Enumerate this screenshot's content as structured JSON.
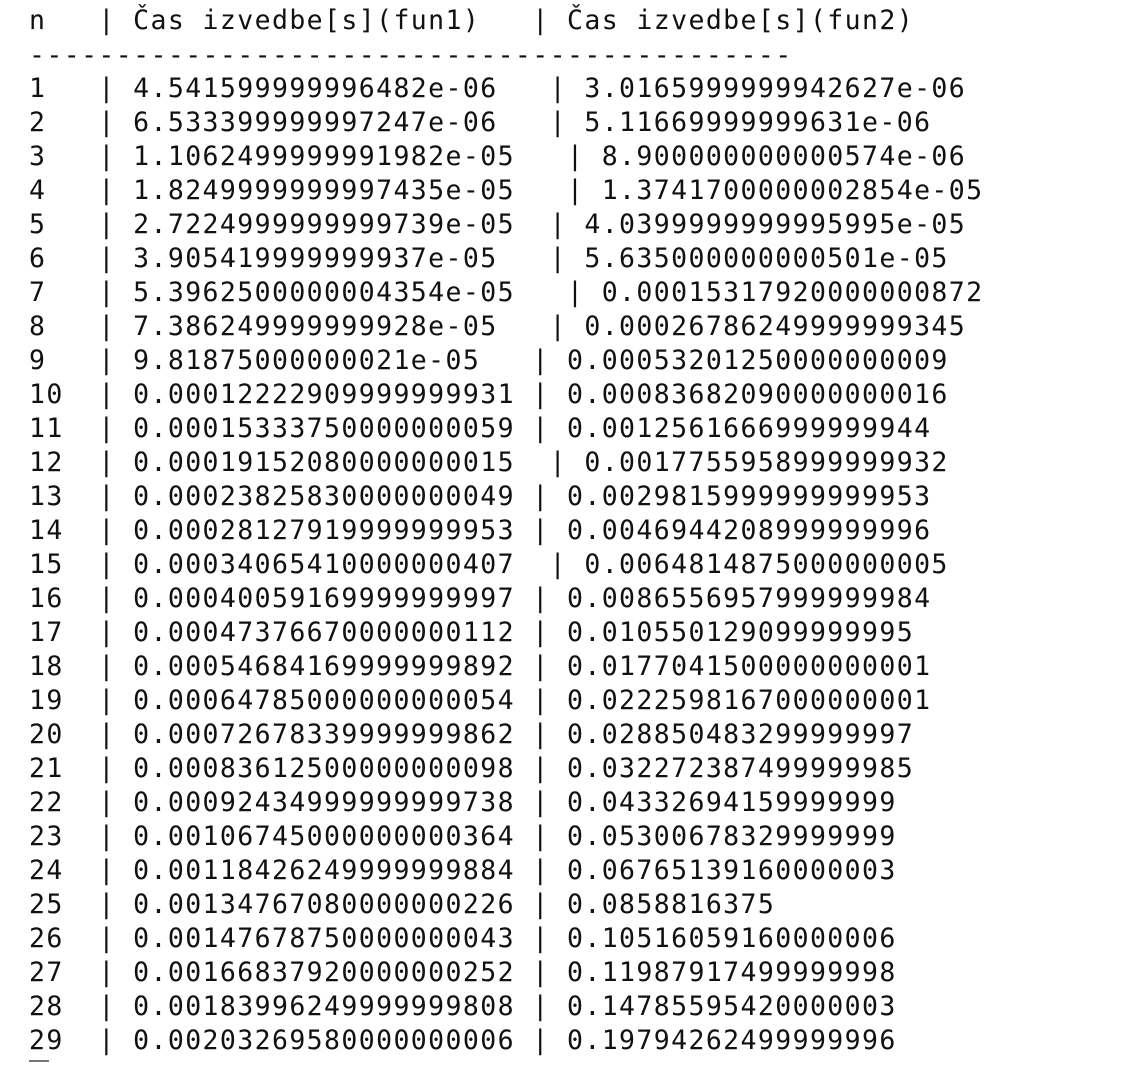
{
  "header": {
    "line": "n   | Čas izvedbe[s](fun1)   | Čas izvedbe[s](fun2)"
  },
  "separator": "--------------------------------------------",
  "rows": [
    "1   | 4.541599999996482e-06   | 3.0165999999942627e-06",
    "2   | 6.533399999997247e-06   | 5.11669999999631e-06",
    "3   | 1.1062499999991982e-05   | 8.900000000000574e-06",
    "4   | 1.8249999999997435e-05   | 1.3741700000002854e-05",
    "5   | 2.7224999999999739e-05  | 4.0399999999995995e-05",
    "6   | 3.905419999999937e-05   | 5.635000000000501e-05",
    "7   | 5.3962500000004354e-05   | 0.00015317920000000872",
    "8   | 7.386249999999928e-05   | 0.00026786249999999345",
    "9   | 9.81875000000021e-05   | 0.00053201250000000009",
    "10  | 0.00012222909999999931 | 0.00083682090000000016",
    "11  | 0.00015333750000000059 | 0.0012561666999999944",
    "12  | 0.00019152080000000015  | 0.0017755958999999932",
    "13  | 0.00023825830000000049 | 0.0029815999999999953",
    "14  | 0.00028127919999999953 | 0.0046944208999999996",
    "15  | 0.00034065410000000407  | 0.0064814875000000005",
    "16  | 0.00040059169999999997 | 0.0086556957999999984",
    "17  | 0.00047376670000000112 | 0.010550129099999995",
    "18  | 0.00054684169999999892 | 0.0177041500000000001",
    "19  | 0.00064785000000000054 | 0.0222598167000000001",
    "20  | 0.00072678339999999862 | 0.028850483299999997",
    "21  | 0.00083612500000000098 | 0.032272387499999985",
    "22  | 0.00092434999999999738 | 0.04332694159999999",
    "23  | 0.00106745000000000364 | 0.05300678329999999",
    "24  | 0.00118426249999999884 | 0.06765139160000003",
    "25  | 0.00134767080000000226 | 0.0858816375",
    "26  | 0.00147678750000000043 | 0.10516059160000006",
    "27  | 0.00166837920000000252 | 0.11987917499999998",
    "28  | 0.00183996249999999808 | 0.14785595420000003",
    "29  | 0.00203269580000000006 | 0.19794262499999996"
  ]
}
